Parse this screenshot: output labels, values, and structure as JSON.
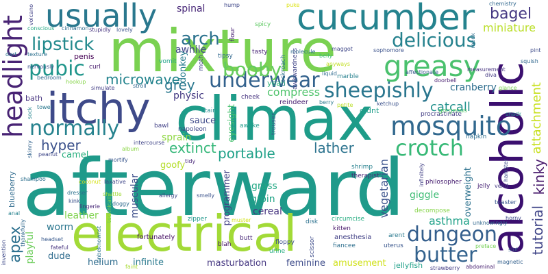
{
  "words": [
    {
      "text": "afterward",
      "color": "#1f9a8a"
    },
    {
      "text": "mixture",
      "color": "#7ad151"
    },
    {
      "text": "electrical",
      "color": "#a2da37"
    },
    {
      "text": "climax",
      "color": "#1e9c89"
    },
    {
      "text": "cucumber",
      "color": "#25838e"
    },
    {
      "text": "alcoholic",
      "color": "#3b0f6f"
    },
    {
      "text": "itchy",
      "color": "#3e4a89"
    },
    {
      "text": "usually",
      "color": "#2a788e"
    },
    {
      "text": "headlight",
      "color": "#482374"
    },
    {
      "text": "greasy",
      "color": "#4ac16d"
    },
    {
      "text": "mosquito",
      "color": "#31688e"
    },
    {
      "text": "crotch",
      "color": "#38b977"
    },
    {
      "text": "sheepishly",
      "color": "#2a768e"
    },
    {
      "text": "underwear",
      "color": "#33628d"
    },
    {
      "text": "dungeon",
      "color": "#355f8d"
    },
    {
      "text": "normally",
      "color": "#26828e"
    },
    {
      "text": "butter",
      "color": "#33628d"
    },
    {
      "text": "pubic",
      "color": "#1f958b"
    },
    {
      "text": "delicious",
      "color": "#26828e"
    },
    {
      "text": "booby",
      "color": "#65cb5e"
    },
    {
      "text": "lipstick",
      "color": "#238a8d"
    },
    {
      "text": "arch",
      "color": "#2c728e"
    },
    {
      "text": "bagel",
      "color": "#453882"
    },
    {
      "text": "miniature",
      "color": "#bade28"
    },
    {
      "text": "microwave",
      "color": "#25848e"
    },
    {
      "text": "grey",
      "color": "#2a788e"
    },
    {
      "text": "attachment",
      "color": "#c8e020"
    },
    {
      "text": "kinky",
      "color": "#481a6c"
    },
    {
      "text": "tutorial",
      "color": "#404588"
    },
    {
      "text": "apex",
      "color": "#2d708e"
    },
    {
      "text": "hyper",
      "color": "#3b518b"
    },
    {
      "text": "extinct",
      "color": "#35b779"
    },
    {
      "text": "portable",
      "color": "#1fa188"
    },
    {
      "text": "lather",
      "color": "#2c738e"
    },
    {
      "text": "catcall",
      "color": "#21918c"
    },
    {
      "text": "compress",
      "color": "#4ec36b"
    },
    {
      "text": "vegetarian",
      "color": "#3b528b"
    },
    {
      "text": "asthma",
      "color": "#1fa188"
    },
    {
      "text": "cranberry",
      "color": "#2e6e8e"
    },
    {
      "text": "sprain",
      "color": "#8fd744"
    },
    {
      "text": "physic",
      "color": "#443a83"
    },
    {
      "text": "awhile",
      "color": "#404688"
    },
    {
      "text": "spinal",
      "color": "#482878"
    },
    {
      "text": "donkey",
      "color": "#287c8e"
    },
    {
      "text": "sauce",
      "color": "#3e4989"
    },
    {
      "text": "eyesight",
      "color": "#46c06f"
    },
    {
      "text": "camel",
      "color": "#29af7f"
    },
    {
      "text": "goofy",
      "color": "#b5de2b"
    },
    {
      "text": "programmer",
      "color": "#424186"
    },
    {
      "text": "grass",
      "color": "#22a884"
    },
    {
      "text": "groin",
      "color": "#20a386"
    },
    {
      "text": "muscular",
      "color": "#3d4e8a"
    },
    {
      "text": "worm",
      "color": "#2a768e"
    },
    {
      "text": "leather",
      "color": "#7fd34e"
    },
    {
      "text": "cereal",
      "color": "#463480"
    },
    {
      "text": "giggle",
      "color": "#3dbc74"
    },
    {
      "text": "overweight",
      "color": "#2c718e"
    },
    {
      "text": "playful",
      "color": "#6ccd5a"
    },
    {
      "text": "dude",
      "color": "#2f6c8e"
    },
    {
      "text": "helium",
      "color": "#2f6c8e"
    },
    {
      "text": "infinite",
      "color": "#29798e"
    },
    {
      "text": "masturbation",
      "color": "#453781"
    },
    {
      "text": "feminine",
      "color": "#3e4c8a"
    },
    {
      "text": "amusement",
      "color": "#d0e11c"
    },
    {
      "text": "jellyfish",
      "color": "#1fa088"
    },
    {
      "text": "blueberry",
      "color": "#2f6b8e"
    },
    {
      "text": "penis",
      "color": "#440154"
    },
    {
      "text": "yeah",
      "color": "#30b57a"
    },
    {
      "text": "bath",
      "color": "#46337f"
    },
    {
      "text": "fortunately",
      "color": "#471164"
    },
    {
      "text": "anesthesia",
      "color": "#424186"
    },
    {
      "text": "didnt",
      "color": "#1f9e89"
    },
    {
      "text": "reindeer",
      "color": "#482173"
    },
    {
      "text": "napoleon",
      "color": "#3f4788"
    },
    {
      "text": "bawl",
      "color": "#424186"
    },
    {
      "text": "stair",
      "color": "#23898e"
    },
    {
      "text": "awake",
      "color": "#1e9b8a"
    },
    {
      "text": "trouser",
      "color": "#38598c"
    },
    {
      "text": "curl",
      "color": "#481a6c"
    },
    {
      "text": "vomit",
      "color": "#1fa287"
    },
    {
      "text": "tipsy",
      "color": "#31688e"
    },
    {
      "text": "tasty",
      "color": "#482576"
    },
    {
      "text": "cheek",
      "color": "#46337f"
    },
    {
      "text": "circumcise",
      "color": "#26ad81"
    },
    {
      "text": "kitten",
      "color": "#48186a"
    },
    {
      "text": "fiancee",
      "color": "#2e6f8e"
    },
    {
      "text": "arent",
      "color": "#29798e"
    },
    {
      "text": "uterus",
      "color": "#39568c"
    },
    {
      "text": "disk",
      "color": "#2c718e"
    },
    {
      "text": "zipper",
      "color": "#1f978b"
    },
    {
      "text": "butt",
      "color": "#482878"
    },
    {
      "text": "floppy",
      "color": "#3c508b"
    },
    {
      "text": "urine",
      "color": "#26ad81"
    },
    {
      "text": "scissor",
      "color": "#3e4c8a"
    },
    {
      "text": "blah",
      "color": "#471365"
    },
    {
      "text": "decompose",
      "color": "#86d549"
    },
    {
      "text": "therapist",
      "color": "#482576"
    },
    {
      "text": "shrimp",
      "color": "#27808e"
    },
    {
      "text": "philosopher",
      "color": "#482071"
    },
    {
      "text": "jelly",
      "color": "#482576"
    },
    {
      "text": "toaster",
      "color": "#39558c"
    },
    {
      "text": "horny",
      "color": "#3f4889"
    },
    {
      "text": "unknowingly",
      "color": "#31688e"
    },
    {
      "text": "preface",
      "color": "#75d054"
    },
    {
      "text": "slut",
      "color": "#355f8d"
    },
    {
      "text": "strawberry",
      "color": "#433d84"
    },
    {
      "text": "abdominal",
      "color": "#482071"
    },
    {
      "text": "magnetic",
      "color": "#34618d"
    },
    {
      "text": "napkin",
      "color": "#2e6e8e"
    },
    {
      "text": "procrastinate",
      "color": "#433e85"
    },
    {
      "text": "gorgeous",
      "color": "#52c569"
    },
    {
      "text": "snack",
      "color": "#21918c"
    },
    {
      "text": "glance",
      "color": "#7ad151"
    },
    {
      "text": "ketchup",
      "color": "#3b518b"
    },
    {
      "text": "petite",
      "color": "#bade28"
    },
    {
      "text": "berry",
      "color": "#29798e"
    },
    {
      "text": "marble",
      "color": "#27808e"
    },
    {
      "text": "liquid",
      "color": "#2f6b8e"
    },
    {
      "text": "belly",
      "color": "#3dbc74"
    },
    {
      "text": "anyways",
      "color": "#c2df23"
    },
    {
      "text": "awkwardness",
      "color": "#404588"
    },
    {
      "text": "cockroach",
      "color": "#2c728e"
    },
    {
      "text": "moth",
      "color": "#414487"
    },
    {
      "text": "flour",
      "color": "#482173"
    },
    {
      "text": "spicy",
      "color": "#5ec962"
    },
    {
      "text": "hump",
      "color": "#3f4788"
    },
    {
      "text": "puke",
      "color": "#dde318"
    },
    {
      "text": "molecule",
      "color": "#2f6b8e"
    },
    {
      "text": "maggot",
      "color": "#3f4788"
    },
    {
      "text": "sophomore",
      "color": "#3b528b"
    },
    {
      "text": "monk",
      "color": "#2e6f8e"
    },
    {
      "text": "chemistry",
      "color": "#31688e"
    },
    {
      "text": "pint",
      "color": "#3e4c8a"
    },
    {
      "text": "affectionate",
      "color": "#38598c"
    },
    {
      "text": "measurement",
      "color": "#46337f"
    },
    {
      "text": "squish",
      "color": "#31688e"
    },
    {
      "text": "diva",
      "color": "#443983"
    },
    {
      "text": "doorbell",
      "color": "#481f70"
    },
    {
      "text": "stroll",
      "color": "#31688e"
    },
    {
      "text": "simulate",
      "color": "#433e85"
    },
    {
      "text": "lovely",
      "color": "#3b518b"
    },
    {
      "text": "stupidly",
      "color": "#46337f"
    },
    {
      "text": "cinnamon",
      "color": "#2f6c8e"
    },
    {
      "text": "conscious",
      "color": "#23a983"
    },
    {
      "text": "volcano",
      "color": "#414287"
    },
    {
      "text": "dart",
      "color": "#2c738e"
    },
    {
      "text": "texture",
      "color": "#2d708e"
    },
    {
      "text": "nervously",
      "color": "#3b518b"
    },
    {
      "text": "bedroom",
      "color": "#31688e"
    },
    {
      "text": "hookup",
      "color": "#86d549"
    },
    {
      "text": "towel",
      "color": "#2a788e"
    },
    {
      "text": "sock",
      "color": "#25858e"
    },
    {
      "text": "skinny",
      "color": "#33638d"
    },
    {
      "text": "peanut",
      "color": "#3f4788"
    },
    {
      "text": "shampoo",
      "color": "#2d708e"
    },
    {
      "text": "album",
      "color": "#8bd646"
    },
    {
      "text": "mortify",
      "color": "#39568c"
    },
    {
      "text": "intercourse",
      "color": "#404588"
    },
    {
      "text": "tidy",
      "color": "#482878"
    },
    {
      "text": "coconut",
      "color": "#d5e21a"
    },
    {
      "text": "laxative",
      "color": "#3f4788"
    },
    {
      "text": "dresser",
      "color": "#2c728e"
    },
    {
      "text": "shuttle",
      "color": "#a0da39"
    },
    {
      "text": "kink",
      "color": "#3b528b"
    },
    {
      "text": "lingerie",
      "color": "#482878"
    },
    {
      "text": "doggy",
      "color": "#2f6b8e"
    },
    {
      "text": "allergy",
      "color": "#3e4989"
    },
    {
      "text": "smelly",
      "color": "#3b528b"
    },
    {
      "text": "technically",
      "color": "#7ad151"
    },
    {
      "text": "unbeknownst",
      "color": "#2c738e"
    },
    {
      "text": "faint",
      "color": "#a8db34"
    },
    {
      "text": "headset",
      "color": "#38598c"
    },
    {
      "text": "fateful",
      "color": "#46337f"
    },
    {
      "text": "thankfully",
      "color": "#31688e"
    },
    {
      "text": "anal",
      "color": "#26828e"
    },
    {
      "text": "invention",
      "color": "#3e4a89"
    },
    {
      "text": "muster",
      "color": "#d2e21b"
    },
    {
      "text": "vend",
      "color": "#443983"
    },
    {
      "text": "hamster",
      "color": "#3e4c8a"
    },
    {
      "text": "infinitely",
      "color": "#424186"
    }
  ]
}
